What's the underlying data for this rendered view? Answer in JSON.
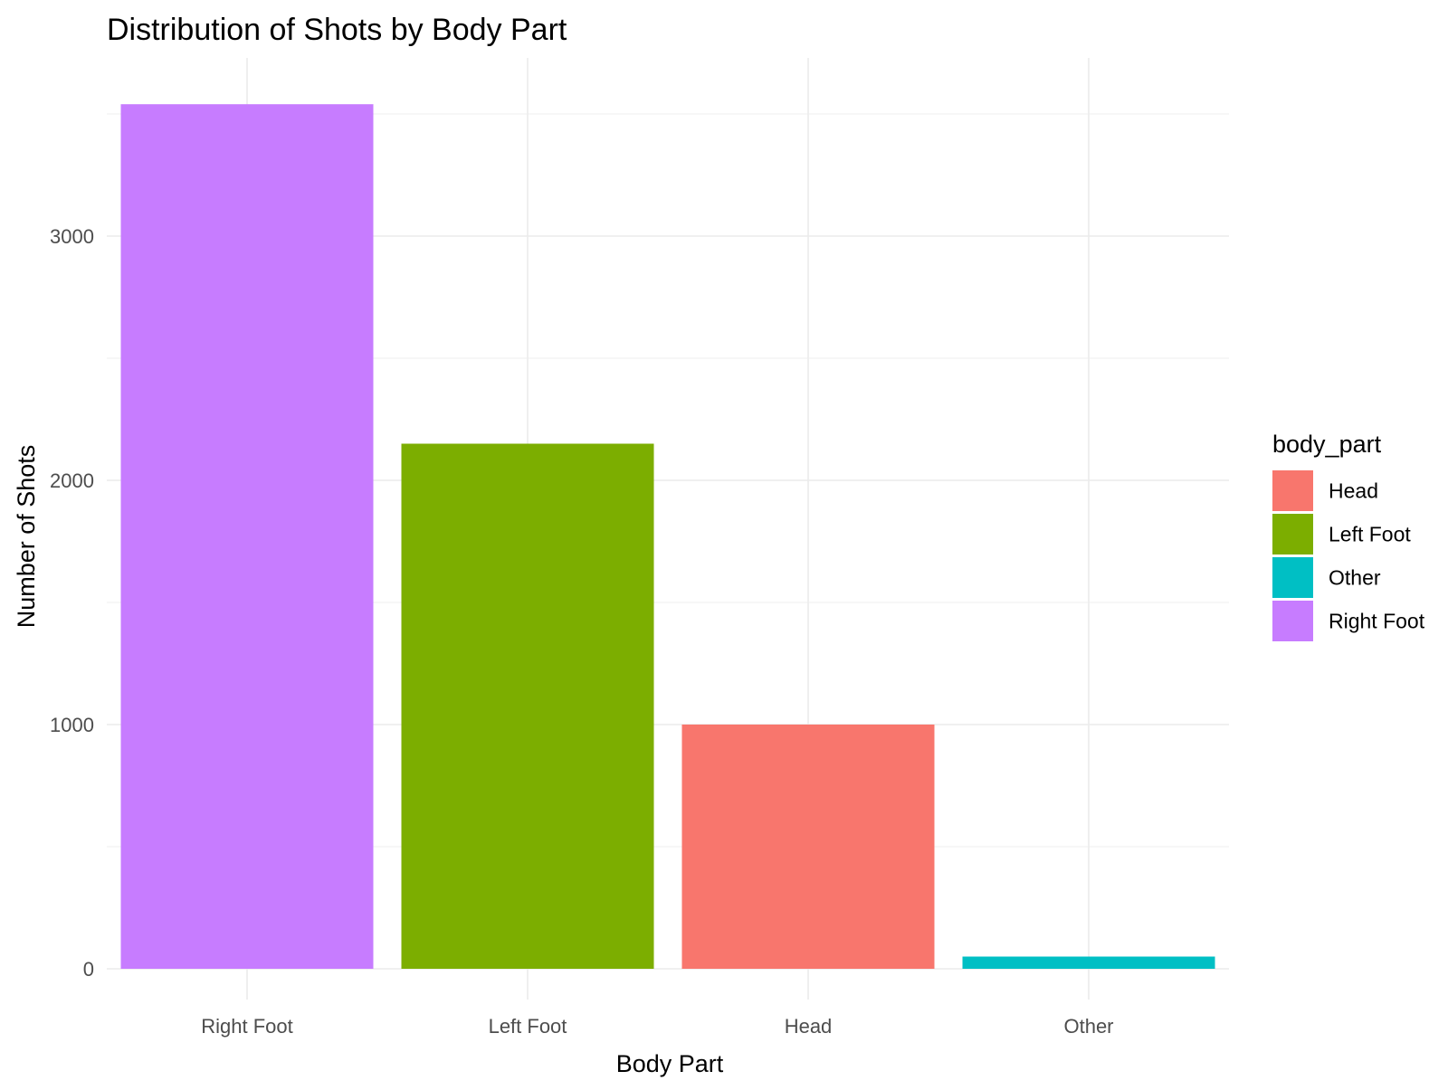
{
  "chart_data": {
    "type": "bar",
    "title": "Distribution of Shots by Body Part",
    "xlabel": "Body Part",
    "ylabel": "Number of Shots",
    "categories": [
      "Right Foot",
      "Left Foot",
      "Head",
      "Other"
    ],
    "values": [
      3540,
      2150,
      1000,
      50
    ],
    "bar_colors": [
      "#C77CFF",
      "#7CAE00",
      "#F8766D",
      "#00BFC4"
    ],
    "ylim": [
      0,
      3700
    ],
    "yticks": [
      0,
      1000,
      2000,
      3000
    ],
    "grid": true,
    "legend": {
      "title": "body_part",
      "placement": "right",
      "items": [
        {
          "label": "Head",
          "color": "#F8766D"
        },
        {
          "label": "Left Foot",
          "color": "#7CAE00"
        },
        {
          "label": "Other",
          "color": "#00BFC4"
        },
        {
          "label": "Right Foot",
          "color": "#C77CFF"
        }
      ]
    }
  }
}
